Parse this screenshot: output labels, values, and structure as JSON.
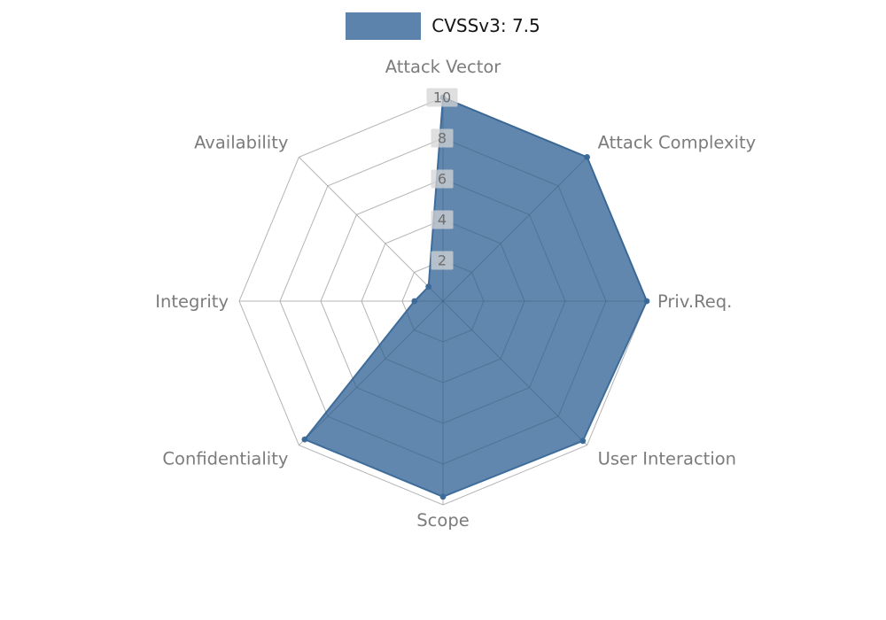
{
  "legend": {
    "label": "CVSSv3: 7.5"
  },
  "chart_data": {
    "type": "radar",
    "title": "",
    "categories": [
      "Attack Vector",
      "Attack Complexity",
      "Priv.Req.",
      "User Interaction",
      "Scope",
      "Confidentiality",
      "Integrity",
      "Availability"
    ],
    "series": [
      {
        "name": "CVSSv3: 7.5",
        "values": [
          10,
          10,
          10,
          9.7,
          9.6,
          9.6,
          1.4,
          1.0
        ]
      }
    ],
    "radial_ticks": [
      2,
      4,
      6,
      8,
      10
    ],
    "rlim": [
      0,
      10
    ],
    "grid": true,
    "axis_start": "top",
    "axis_direction": "clockwise",
    "legend_position": "top-center",
    "series_color": "#3e6d9c",
    "grid_color": "#c3c3c3",
    "label_color": "#7c7c7c",
    "tick_text_color": "#6e6e6e",
    "tick_box_color": "#d4d4d4"
  }
}
